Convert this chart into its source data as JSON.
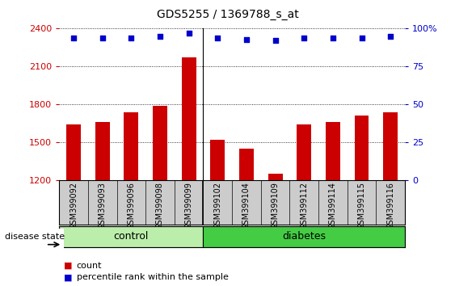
{
  "title": "GDS5255 / 1369788_s_at",
  "samples": [
    "GSM399092",
    "GSM399093",
    "GSM399096",
    "GSM399098",
    "GSM399099",
    "GSM399102",
    "GSM399104",
    "GSM399109",
    "GSM399112",
    "GSM399114",
    "GSM399115",
    "GSM399116"
  ],
  "counts": [
    1640,
    1660,
    1740,
    1790,
    2170,
    1520,
    1450,
    1250,
    1640,
    1660,
    1710,
    1740
  ],
  "percentile_ranks": [
    94,
    94,
    94,
    95,
    97,
    94,
    93,
    92,
    94,
    94,
    94,
    95
  ],
  "n_control": 5,
  "ylim_left": [
    1200,
    2400
  ],
  "ylim_right": [
    0,
    100
  ],
  "yticks_left": [
    1200,
    1500,
    1800,
    2100,
    2400
  ],
  "yticks_right": [
    0,
    25,
    50,
    75,
    100
  ],
  "ytick_labels_right": [
    "0",
    "25",
    "50",
    "75",
    "100%"
  ],
  "bar_color": "#cc0000",
  "dot_color": "#0000cc",
  "control_color": "#bbeeaa",
  "diabetes_color": "#44cc44",
  "bg_color": "#cccccc",
  "legend_count_label": "count",
  "legend_pct_label": "percentile rank within the sample",
  "group_label": "disease state"
}
